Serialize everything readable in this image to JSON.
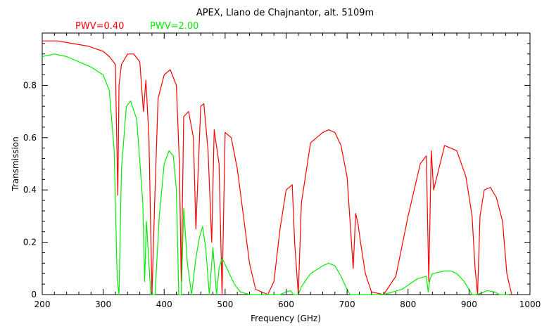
{
  "chart_data": {
    "type": "line",
    "title": "APEX, Llano de Chajnantor, alt. 5109m",
    "xlabel": "Frequency (GHz)",
    "ylabel": "Transmission",
    "xlim": [
      200,
      1000
    ],
    "ylim": [
      0,
      1
    ],
    "x_ticks": [
      "200",
      "300",
      "400",
      "500",
      "600",
      "700",
      "800",
      "900",
      "1000"
    ],
    "y_ticks": [
      "0",
      "0.2",
      "0.4",
      "0.6",
      "0.8"
    ],
    "legend_position": "top-left",
    "series": [
      {
        "name": "PWV=0.40",
        "color": "#ff0000",
        "x": [
          200,
          225,
          250,
          275,
          300,
          310,
          320,
          324,
          326,
          330,
          340,
          350,
          360,
          366,
          370,
          375,
          380,
          385,
          390,
          400,
          410,
          420,
          425,
          428,
          432,
          440,
          448,
          452,
          460,
          465,
          472,
          478,
          482,
          490,
          495,
          500,
          510,
          520,
          530,
          540,
          550,
          570,
          580,
          590,
          600,
          610,
          614,
          620,
          625,
          640,
          660,
          670,
          680,
          690,
          700,
          710,
          714,
          718,
          722,
          730,
          740,
          760,
          780,
          800,
          820,
          830,
          834,
          838,
          842,
          860,
          880,
          895,
          905,
          910,
          914,
          918,
          925,
          935,
          945,
          955,
          962,
          970
        ],
        "y": [
          0.97,
          0.97,
          0.96,
          0.95,
          0.93,
          0.91,
          0.88,
          0.38,
          0.8,
          0.88,
          0.92,
          0.92,
          0.89,
          0.7,
          0.82,
          0.6,
          0.0,
          0.4,
          0.75,
          0.84,
          0.86,
          0.8,
          0.5,
          0.05,
          0.68,
          0.7,
          0.6,
          0.25,
          0.72,
          0.73,
          0.55,
          0.2,
          0.63,
          0.5,
          0.0,
          0.62,
          0.6,
          0.48,
          0.3,
          0.12,
          0.02,
          0.0,
          0.05,
          0.25,
          0.4,
          0.42,
          0.2,
          0.0,
          0.35,
          0.58,
          0.62,
          0.63,
          0.62,
          0.57,
          0.45,
          0.1,
          0.31,
          0.27,
          0.2,
          0.08,
          0.01,
          0.0,
          0.07,
          0.3,
          0.5,
          0.53,
          0.05,
          0.55,
          0.4,
          0.57,
          0.55,
          0.45,
          0.3,
          0.1,
          0.0,
          0.3,
          0.4,
          0.41,
          0.37,
          0.28,
          0.08,
          0.0
        ]
      },
      {
        "name": "PWV=2.00",
        "color": "#00ee00",
        "x": [
          200,
          220,
          240,
          260,
          280,
          300,
          310,
          318,
          323,
          326,
          330,
          338,
          345,
          355,
          365,
          368,
          371,
          378,
          385,
          392,
          400,
          408,
          415,
          420,
          424,
          428,
          432,
          438,
          445,
          452,
          458,
          463,
          468,
          474,
          480,
          486,
          490,
          495,
          505,
          515,
          525,
          540,
          560,
          590,
          600,
          607,
          612,
          620,
          625,
          640,
          660,
          670,
          680,
          690,
          700,
          705,
          710,
          730,
          760,
          790,
          815,
          830,
          833,
          836,
          840,
          860,
          870,
          880,
          892,
          900,
          905,
          910,
          920,
          930,
          942,
          950,
          965
        ],
        "y": [
          0.91,
          0.92,
          0.91,
          0.89,
          0.87,
          0.84,
          0.78,
          0.55,
          0.06,
          0.0,
          0.48,
          0.72,
          0.74,
          0.67,
          0.35,
          0.05,
          0.28,
          0.0,
          0.0,
          0.3,
          0.5,
          0.55,
          0.53,
          0.4,
          0.0,
          0.0,
          0.33,
          0.12,
          0.0,
          0.14,
          0.22,
          0.26,
          0.18,
          0.0,
          0.18,
          0.0,
          0.1,
          0.14,
          0.09,
          0.04,
          0.01,
          0.0,
          0.0,
          0.0,
          0.01,
          0.015,
          0.0,
          0.0,
          0.03,
          0.08,
          0.11,
          0.12,
          0.11,
          0.07,
          0.02,
          0.0,
          0.0,
          0.0,
          0.0,
          0.02,
          0.06,
          0.07,
          0.01,
          0.06,
          0.08,
          0.09,
          0.09,
          0.08,
          0.05,
          0.02,
          0.0,
          0.0,
          0.005,
          0.015,
          0.01,
          0.0,
          0.0
        ]
      }
    ]
  }
}
